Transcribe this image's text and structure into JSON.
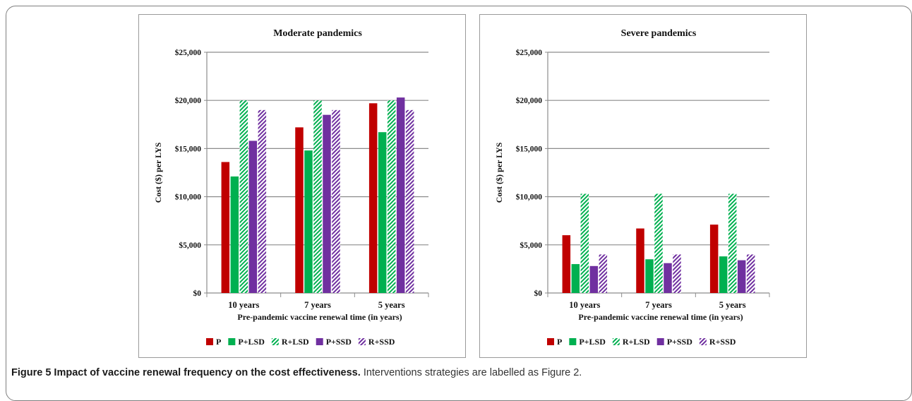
{
  "caption": {
    "lead": "Figure 5 Impact of vaccine renewal frequency on the cost effectiveness.",
    "rest": "Interventions strategies are labelled as Figure 2."
  },
  "series_styles": [
    {
      "name": "P",
      "color": "#c00000",
      "pattern": "solid"
    },
    {
      "name": "P+LSD",
      "color": "#00b050",
      "pattern": "solid"
    },
    {
      "name": "R+LSD",
      "color": "#00b050",
      "pattern": "hatch"
    },
    {
      "name": "P+SSD",
      "color": "#7030a0",
      "pattern": "solid"
    },
    {
      "name": "R+SSD",
      "color": "#7030a0",
      "pattern": "hatch"
    }
  ],
  "chart_data": [
    {
      "type": "bar",
      "title": "Moderate pandemics",
      "xlabel": "Pre-pandemic vaccine renewal time (in years)",
      "ylabel": "Cost ($) per LYS",
      "ylim": [
        0,
        25000
      ],
      "yticks": [
        "$0",
        "$5,000",
        "$10,000",
        "$15,000",
        "$20,000",
        "$25,000"
      ],
      "grid": true,
      "legend_position": "bottom",
      "categories": [
        "10 years",
        "7 years",
        "5 years"
      ],
      "series": [
        {
          "name": "P",
          "values": [
            13600,
            17200,
            19700
          ]
        },
        {
          "name": "P+LSD",
          "values": [
            12100,
            14800,
            16700
          ]
        },
        {
          "name": "R+LSD",
          "values": [
            20000,
            20000,
            20000
          ]
        },
        {
          "name": "P+SSD",
          "values": [
            15800,
            18500,
            20300
          ]
        },
        {
          "name": "R+SSD",
          "values": [
            19000,
            19000,
            19000
          ]
        }
      ]
    },
    {
      "type": "bar",
      "title": "Severe pandemics",
      "xlabel": "Pre-pandemic vaccine renewal time (in years)",
      "ylabel": "Cost ($) per LYS",
      "ylim": [
        0,
        25000
      ],
      "yticks": [
        "$0",
        "$5,000",
        "$10,000",
        "$15,000",
        "$20,000",
        "$25,000"
      ],
      "grid": true,
      "legend_position": "bottom",
      "categories": [
        "10 years",
        "7 years",
        "5 years"
      ],
      "series": [
        {
          "name": "P",
          "values": [
            6000,
            6700,
            7100
          ]
        },
        {
          "name": "P+LSD",
          "values": [
            3000,
            3500,
            3800
          ]
        },
        {
          "name": "R+LSD",
          "values": [
            10300,
            10300,
            10300
          ]
        },
        {
          "name": "P+SSD",
          "values": [
            2800,
            3100,
            3400
          ]
        },
        {
          "name": "R+SSD",
          "values": [
            4000,
            4000,
            4000
          ]
        }
      ]
    }
  ]
}
